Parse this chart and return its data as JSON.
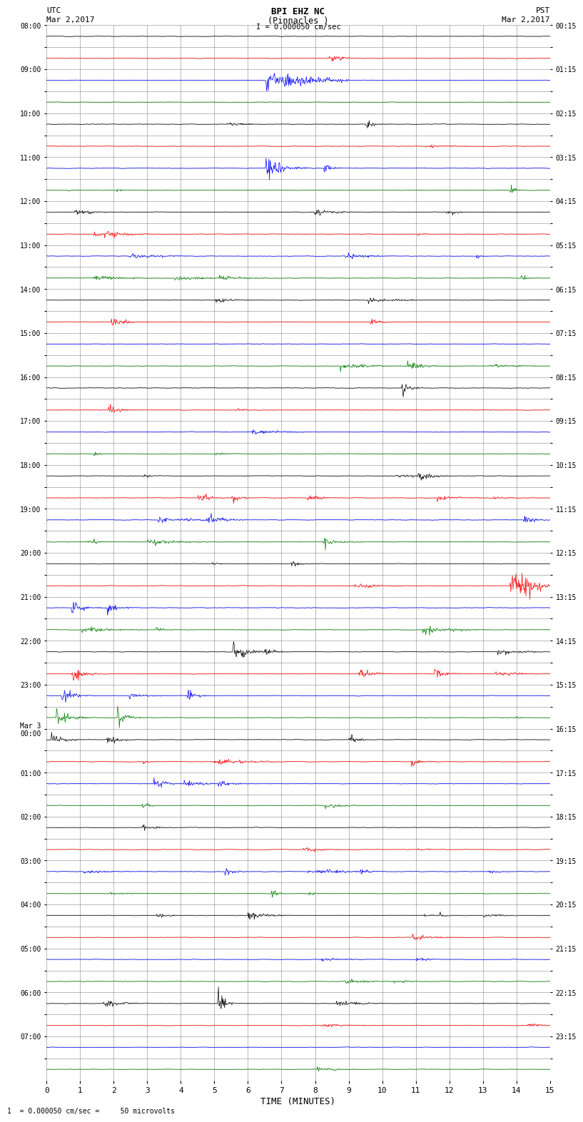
{
  "title_line1": "BPI EHZ NC",
  "title_line2": "(Pinnacles )",
  "scale_label": "I = 0.000050 cm/sec",
  "left_label_top": "UTC",
  "left_label_date": "Mar 2,2017",
  "right_label_top": "PST",
  "right_label_date": "Mar 2,2017",
  "bottom_label": "TIME (MINUTES)",
  "footnote": "1  = 0.000050 cm/sec =     50 microvolts",
  "xlabel_ticks": [
    0,
    1,
    2,
    3,
    4,
    5,
    6,
    7,
    8,
    9,
    10,
    11,
    12,
    13,
    14,
    15
  ],
  "utc_times": [
    "08:00",
    "",
    "09:00",
    "",
    "10:00",
    "",
    "11:00",
    "",
    "12:00",
    "",
    "13:00",
    "",
    "14:00",
    "",
    "15:00",
    "",
    "16:00",
    "",
    "17:00",
    "",
    "18:00",
    "",
    "19:00",
    "",
    "20:00",
    "",
    "21:00",
    "",
    "22:00",
    "",
    "23:00",
    "",
    "Mar 3\n00:00",
    "",
    "01:00",
    "",
    "02:00",
    "",
    "03:00",
    "",
    "04:00",
    "",
    "05:00",
    "",
    "06:00",
    "",
    "07:00",
    ""
  ],
  "pst_times": [
    "00:15",
    "",
    "01:15",
    "",
    "02:15",
    "",
    "03:15",
    "",
    "04:15",
    "",
    "05:15",
    "",
    "06:15",
    "",
    "07:15",
    "",
    "08:15",
    "",
    "09:15",
    "",
    "10:15",
    "",
    "11:15",
    "",
    "12:15",
    "",
    "13:15",
    "",
    "14:15",
    "",
    "15:15",
    "",
    "16:15",
    "",
    "17:15",
    "",
    "18:15",
    "",
    "19:15",
    "",
    "20:15",
    "",
    "21:15",
    "",
    "22:15",
    "",
    "23:15",
    ""
  ],
  "num_rows": 48,
  "colors_cycle": [
    "black",
    "red",
    "blue",
    "green"
  ],
  "bg_color": "white",
  "grid_color": "#888888",
  "seed": 12345
}
